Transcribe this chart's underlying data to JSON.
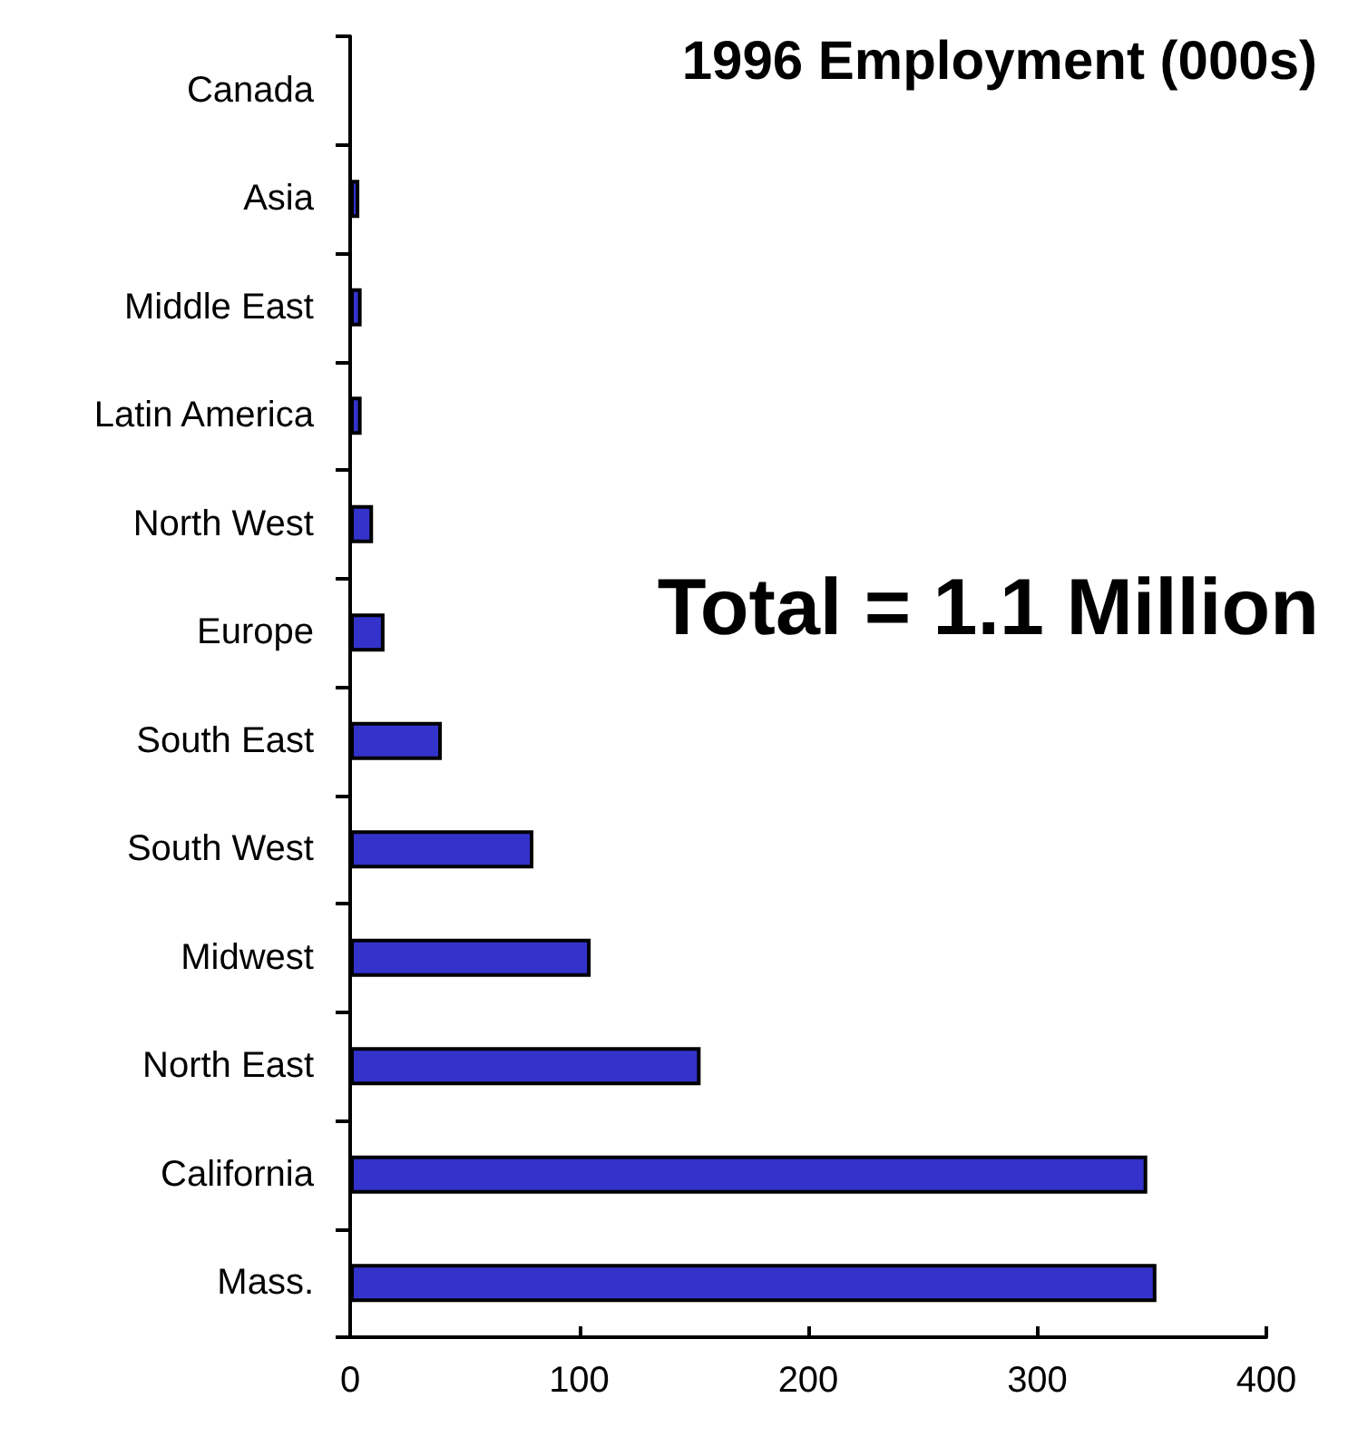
{
  "chart_data": {
    "type": "bar",
    "orientation": "horizontal",
    "title": "1996 Employment (000s)",
    "annotations": [
      "Total = 1.1 Million"
    ],
    "categories": [
      "Canada",
      "Asia",
      "Middle East",
      "Latin America",
      "North West",
      "Europe",
      "South East",
      "South West",
      "Midwest",
      "North East",
      "California",
      "Mass."
    ],
    "values": [
      0,
      4,
      5,
      5,
      10,
      15,
      40,
      80,
      105,
      153,
      348,
      352
    ],
    "color": "#3333cc",
    "xlim": [
      0,
      400
    ],
    "xticks": [
      0,
      100,
      200,
      300,
      400
    ],
    "grid": false
  }
}
